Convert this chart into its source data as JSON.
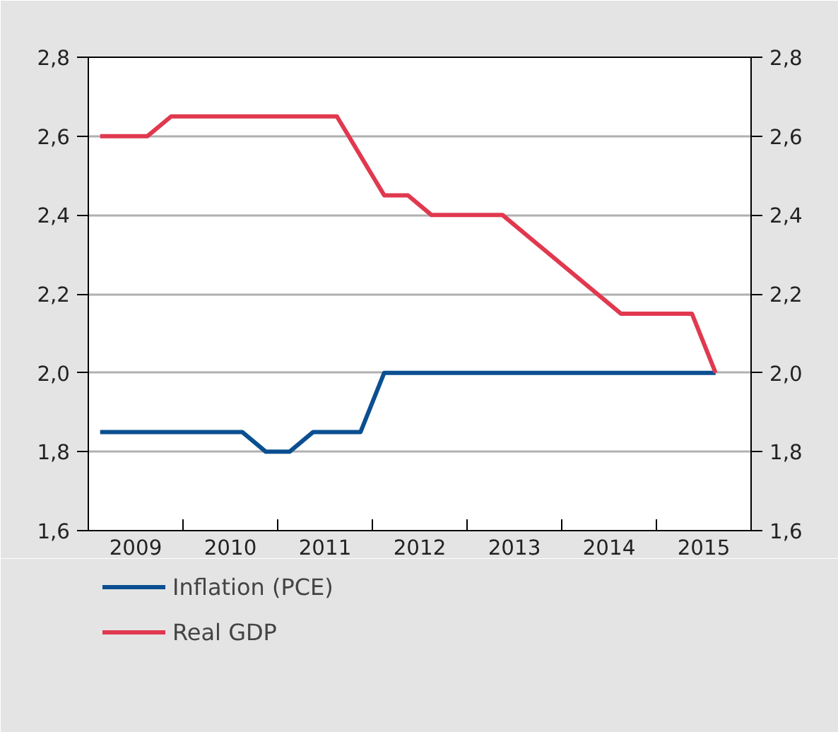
{
  "chart_data": {
    "type": "line",
    "xlim": [
      2009,
      2016
    ],
    "xticks": [
      {
        "value": 2010,
        "label": null
      },
      {
        "value": 2011,
        "label": null
      },
      {
        "value": 2012,
        "label": null
      },
      {
        "value": 2013,
        "label": null
      },
      {
        "value": 2014,
        "label": null
      },
      {
        "value": 2015,
        "label": null
      },
      {
        "value": 2009.5,
        "label": "2009"
      },
      {
        "value": 2010.5,
        "label": "2010"
      },
      {
        "value": 2011.5,
        "label": "2011"
      },
      {
        "value": 2012.5,
        "label": "2012"
      },
      {
        "value": 2013.5,
        "label": "2013"
      },
      {
        "value": 2014.5,
        "label": "2014"
      },
      {
        "value": 2015.5,
        "label": "2015"
      }
    ],
    "ylim": [
      1.6,
      2.8
    ],
    "yticks": [
      {
        "value": 1.6,
        "label": "1,6"
      },
      {
        "value": 1.8,
        "label": "1,8"
      },
      {
        "value": 2.0,
        "label": "2,0"
      },
      {
        "value": 2.2,
        "label": "2,2"
      },
      {
        "value": 2.4,
        "label": "2,4"
      },
      {
        "value": 2.6,
        "label": "2,6"
      },
      {
        "value": 2.8,
        "label": "2,8"
      }
    ],
    "y2lim": [
      1.6,
      2.8
    ],
    "y2ticks": [
      {
        "value": 1.6,
        "label": "1,6"
      },
      {
        "value": 1.8,
        "label": "1,8"
      },
      {
        "value": 2.0,
        "label": "2,0"
      },
      {
        "value": 2.2,
        "label": "2,2"
      },
      {
        "value": 2.4,
        "label": "2,4"
      },
      {
        "value": 2.6,
        "label": "2,6"
      },
      {
        "value": 2.8,
        "label": "2,8"
      }
    ],
    "grid": "y",
    "legend": "bottom",
    "line_style": "solid",
    "series": [
      {
        "name": "Inflation (PCE)",
        "color": "#0b4f91",
        "x": [
          2009.125,
          2010.625,
          2010.875,
          2011.125,
          2011.375,
          2011.875,
          2012.125,
          2015.625
        ],
        "values": [
          1.85,
          1.85,
          1.8,
          1.8,
          1.85,
          1.85,
          2.0,
          2.0
        ]
      },
      {
        "name": "Real GDP",
        "color": "#e0394f",
        "x": [
          2009.125,
          2009.625,
          2009.875,
          2011.625,
          2012.125,
          2012.375,
          2012.625,
          2013.375,
          2014.625,
          2015.375,
          2015.625
        ],
        "values": [
          2.6,
          2.6,
          2.65,
          2.65,
          2.45,
          2.45,
          2.4,
          2.4,
          2.15,
          2.15,
          2.0
        ]
      }
    ]
  }
}
